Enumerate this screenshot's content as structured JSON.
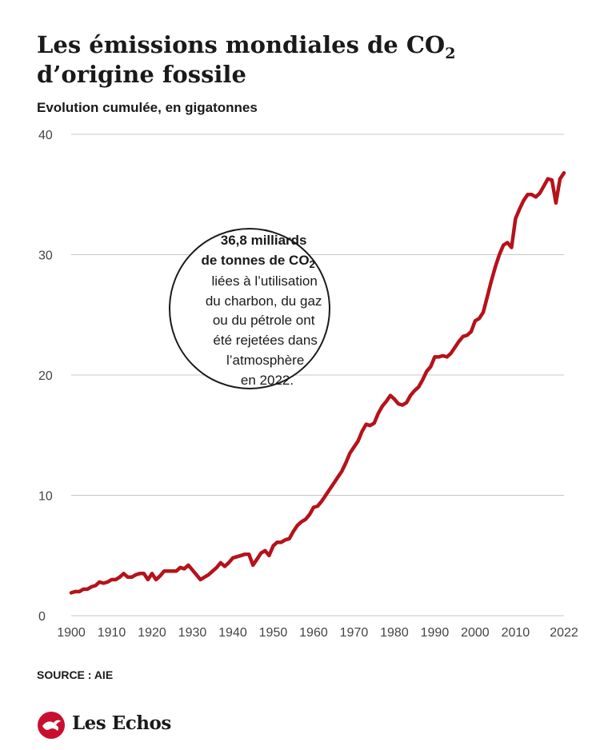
{
  "title": {
    "line1_main": "Les émissions mondiales de CO",
    "line1_sub": "2",
    "line2": "d’origine fossile"
  },
  "subtitle": "Evolution cumulée, en gigatonnes",
  "source": "SOURCE : AIE",
  "logo": {
    "text": "Les Echos",
    "color": "#c8102e"
  },
  "annotation": {
    "bold_lines": [
      "36,8 milliards",
      "de tonnes de CO"
    ],
    "bold_sub": "2",
    "lines": [
      "liées à l’utilisation",
      "du charbon, du gaz",
      "ou du pétrole ont",
      "été rejetées dans",
      "l’atmosphère",
      "en 2022."
    ]
  },
  "chart_data": {
    "type": "line",
    "title": "Les émissions mondiales de CO2 d’origine fossile",
    "subtitle": "Evolution cumulée, en gigatonnes",
    "xlabel": "",
    "ylabel": "",
    "xlim": [
      1900,
      2022
    ],
    "ylim": [
      0,
      40
    ],
    "x_ticks": [
      "1900",
      "1910",
      "1920",
      "1930",
      "1940",
      "1950",
      "1960",
      "1970",
      "1980",
      "1990",
      "2000",
      "2010",
      "2022"
    ],
    "y_ticks": [
      "0",
      "10",
      "20",
      "30",
      "40"
    ],
    "grid": true,
    "color": "#b5121b",
    "series": [
      {
        "x": [
          1900,
          1901,
          1902,
          1903,
          1904,
          1905,
          1906,
          1907,
          1908,
          1909,
          1910,
          1911,
          1912,
          1913,
          1914,
          1915,
          1916,
          1917,
          1918,
          1919,
          1920,
          1921,
          1922,
          1923,
          1924,
          1925,
          1926,
          1927,
          1928,
          1929,
          1930,
          1931,
          1932,
          1933,
          1934,
          1935,
          1936,
          1937,
          1938,
          1939,
          1940,
          1941,
          1942,
          1943,
          1944,
          1945,
          1946,
          1947,
          1948,
          1949,
          1950,
          1951,
          1952,
          1953,
          1954,
          1955,
          1956,
          1957,
          1958,
          1959,
          1960,
          1961,
          1962,
          1963,
          1964,
          1965,
          1966,
          1967,
          1968,
          1969,
          1970,
          1971,
          1972,
          1973,
          1974,
          1975,
          1976,
          1977,
          1978,
          1979,
          1980,
          1981,
          1982,
          1983,
          1984,
          1985,
          1986,
          1987,
          1988,
          1989,
          1990,
          1991,
          1992,
          1993,
          1994,
          1995,
          1996,
          1997,
          1998,
          1999,
          2000,
          2001,
          2002,
          2003,
          2004,
          2005,
          2006,
          2007,
          2008,
          2009,
          2010,
          2011,
          2012,
          2013,
          2014,
          2015,
          2016,
          2017,
          2018,
          2019,
          2020,
          2021,
          2022
        ],
        "y": [
          1.9,
          2.0,
          2.0,
          2.2,
          2.2,
          2.4,
          2.5,
          2.8,
          2.7,
          2.8,
          3.0,
          3.0,
          3.2,
          3.5,
          3.2,
          3.2,
          3.4,
          3.5,
          3.5,
          3.0,
          3.5,
          3.0,
          3.3,
          3.7,
          3.7,
          3.7,
          3.7,
          4.0,
          3.9,
          4.2,
          3.8,
          3.4,
          3.0,
          3.2,
          3.4,
          3.7,
          4.0,
          4.4,
          4.1,
          4.4,
          4.8,
          4.9,
          5.0,
          5.1,
          5.1,
          4.2,
          4.7,
          5.2,
          5.4,
          5.0,
          5.8,
          6.1,
          6.1,
          6.3,
          6.4,
          7.0,
          7.5,
          7.8,
          8.0,
          8.4,
          9.0,
          9.1,
          9.5,
          10.0,
          10.5,
          11.0,
          11.5,
          12.0,
          12.7,
          13.5,
          14.0,
          14.5,
          15.3,
          15.9,
          15.8,
          16.0,
          16.8,
          17.4,
          17.8,
          18.3,
          18.0,
          17.6,
          17.5,
          17.7,
          18.3,
          18.7,
          19.0,
          19.6,
          20.3,
          20.7,
          21.5,
          21.5,
          21.6,
          21.5,
          21.8,
          22.3,
          22.8,
          23.2,
          23.3,
          23.6,
          24.5,
          24.7,
          25.2,
          26.5,
          27.8,
          29.0,
          30.0,
          30.8,
          31.0,
          30.6,
          33.0,
          33.8,
          34.5,
          35.0,
          35.0,
          34.8,
          35.1,
          35.7,
          36.3,
          36.2,
          34.3,
          36.3,
          36.8
        ]
      }
    ]
  }
}
